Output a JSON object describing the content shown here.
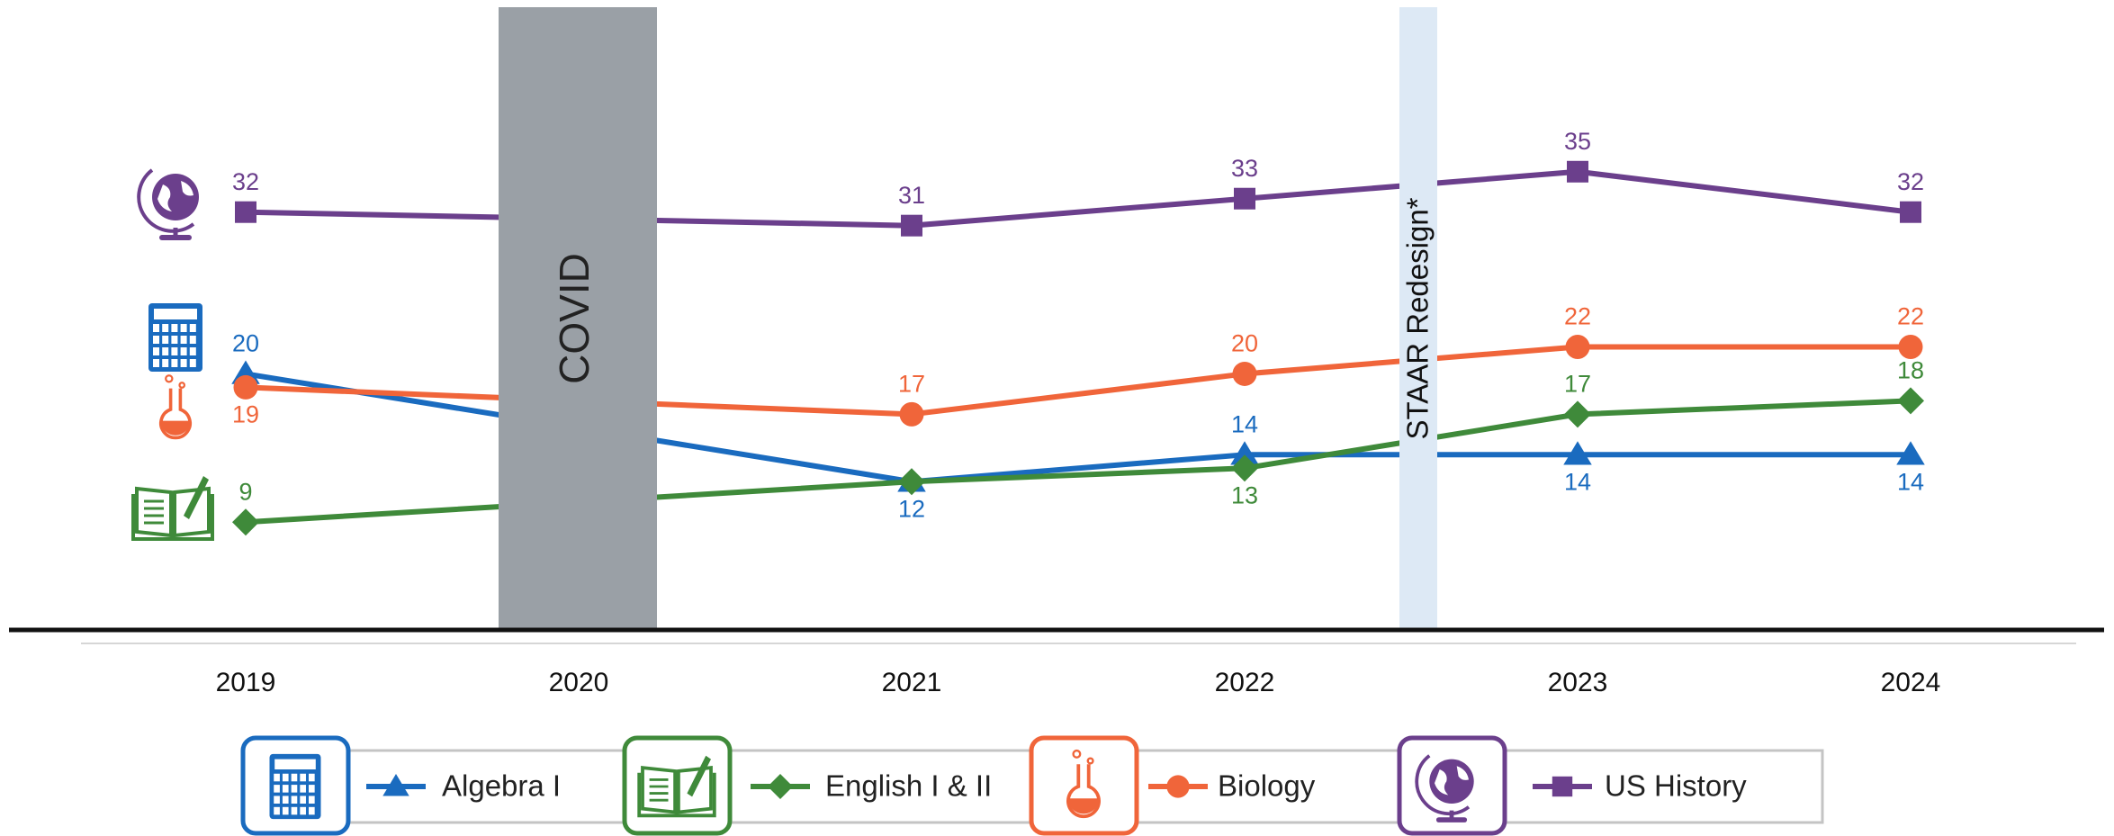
{
  "chart_data": {
    "type": "line",
    "categories": [
      "2019",
      "2020",
      "2021",
      "2022",
      "2023",
      "2024"
    ],
    "series": [
      {
        "name": "Algebra I",
        "color": "#1a6bbf",
        "marker": "triangle",
        "values": [
          20,
          16,
          12,
          14,
          14,
          14
        ]
      },
      {
        "name": "English I & II",
        "color": "#3f8a3a",
        "marker": "diamond",
        "values": [
          9,
          10.5,
          12,
          13,
          17,
          18
        ]
      },
      {
        "name": "Biology",
        "color": "#f0653a",
        "marker": "circle",
        "values": [
          19,
          18,
          17,
          20,
          22,
          22
        ]
      },
      {
        "name": "US History",
        "color": "#6b3f8c",
        "marker": "square",
        "values": [
          32,
          31.5,
          31,
          33,
          35,
          32
        ]
      }
    ],
    "ylim": [
      0,
      45
    ],
    "annotations": [
      "COVID",
      "STAAR Redesign*"
    ],
    "legend": "bottom"
  }
}
